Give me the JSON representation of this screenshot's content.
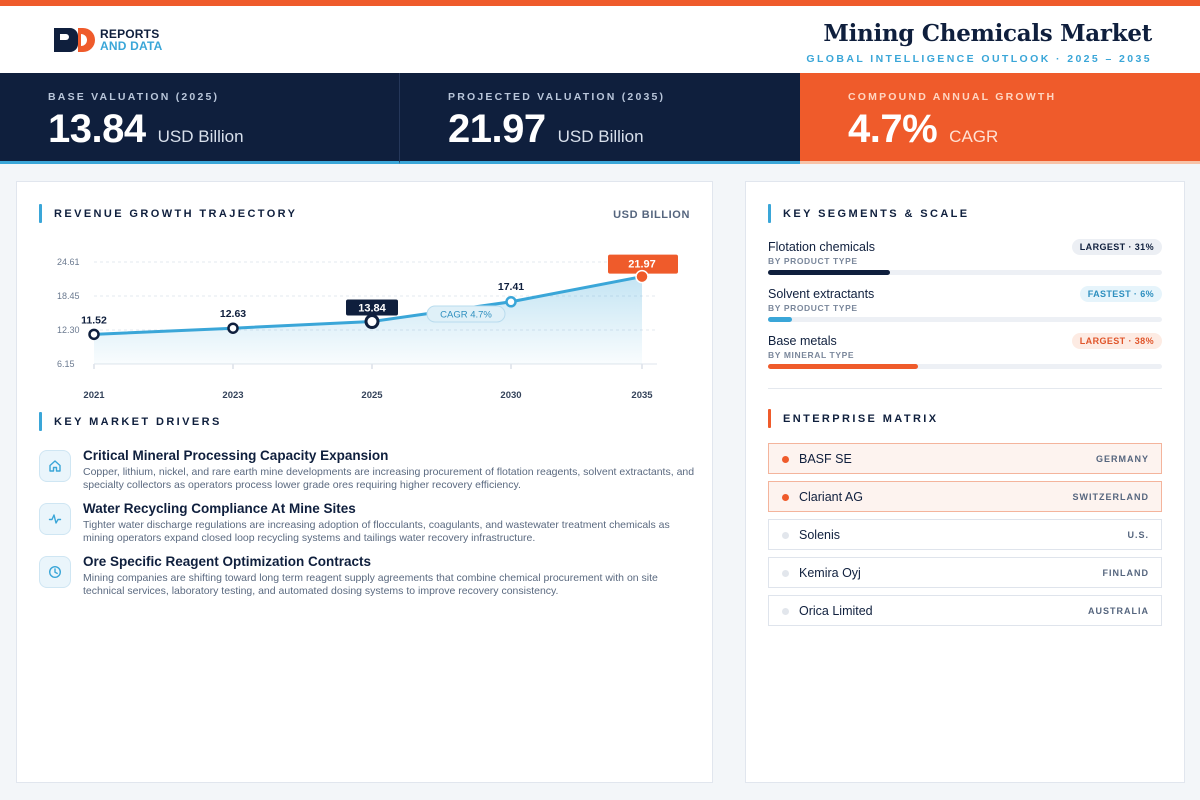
{
  "header": {
    "logo_line1": "REPORTS",
    "logo_line2": "AND DATA",
    "title": "Mining Chemicals Market",
    "subtitle": "GLOBAL INTELLIGENCE OUTLOOK  ·  2025 – 2035"
  },
  "kpis": [
    {
      "label": "BASE VALUATION (2025)",
      "value": "13.84",
      "unit": "USD Billion"
    },
    {
      "label": "PROJECTED VALUATION (2035)",
      "value": "21.97",
      "unit": "USD Billion"
    },
    {
      "label": "COMPOUND ANNUAL GROWTH",
      "value": "4.7%",
      "unit": "CAGR"
    }
  ],
  "colors": {
    "navy": "#0f1f3d",
    "accent_blue": "#3aa6d8",
    "accent_orange": "#ef5b2b"
  },
  "revenue": {
    "title": "REVENUE GROWTH TRAJECTORY",
    "unit": "USD BILLION"
  },
  "chart_data": {
    "type": "area",
    "x": [
      "2021",
      "2023",
      "2025",
      "2030",
      "2035"
    ],
    "values": [
      11.52,
      12.63,
      13.84,
      17.41,
      21.97
    ],
    "value_labels": [
      "11.52",
      "12.63",
      "13.84",
      "17.41",
      "21.97"
    ],
    "yticks": [
      6.15,
      12.3,
      18.45,
      24.61
    ],
    "ytick_labels": [
      "6.15",
      "12.30",
      "18.45",
      "24.61"
    ],
    "ylim": [
      6.15,
      24.61
    ],
    "annotation": "CAGR 4.7%",
    "grid": true
  },
  "drivers": {
    "title": "KEY MARKET DRIVERS",
    "items": [
      {
        "icon": "home-icon",
        "title": "Critical Mineral Processing Capacity Expansion",
        "desc": "Copper, lithium, nickel, and rare earth mine developments are increasing procurement of flotation reagents, solvent extractants, and specialty collectors as operators process lower grade ores requiring higher recovery efficiency."
      },
      {
        "icon": "activity-icon",
        "title": "Water Recycling Compliance At Mine Sites",
        "desc": "Tighter water discharge regulations are increasing adoption of flocculants, coagulants, and wastewater treatment chemicals as mining operators expand closed loop recycling systems and tailings water recovery infrastructure."
      },
      {
        "icon": "clock-icon",
        "title": "Ore Specific Reagent Optimization Contracts",
        "desc": "Mining companies are shifting toward long term reagent supply agreements that combine chemical procurement with on site technical services, laboratory testing, and automated dosing systems to improve recovery consistency."
      }
    ]
  },
  "segments": {
    "title": "KEY SEGMENTS & SCALE",
    "items": [
      {
        "name": "Flotation chemicals",
        "sub": "BY PRODUCT TYPE",
        "badge": "LARGEST · 31%",
        "share": 31,
        "color": "#0f1f3d"
      },
      {
        "name": "Solvent extractants",
        "sub": "BY PRODUCT TYPE",
        "badge": "FASTEST · 6%",
        "share": 6,
        "color": "#3aa6d8"
      },
      {
        "name": "Base metals",
        "sub": "BY MINERAL TYPE",
        "badge": "LARGEST · 38%",
        "share": 38,
        "color": "#ef5b2b"
      }
    ]
  },
  "matrix": {
    "title": "ENTERPRISE MATRIX",
    "companies": [
      {
        "name": "BASF SE",
        "country": "GERMANY"
      },
      {
        "name": "Clariant AG",
        "country": "SWITZERLAND"
      },
      {
        "name": "Solenis",
        "country": "U.S."
      },
      {
        "name": "Kemira Oyj",
        "country": "FINLAND"
      },
      {
        "name": "Orica Limited",
        "country": "AUSTRALIA"
      }
    ]
  }
}
